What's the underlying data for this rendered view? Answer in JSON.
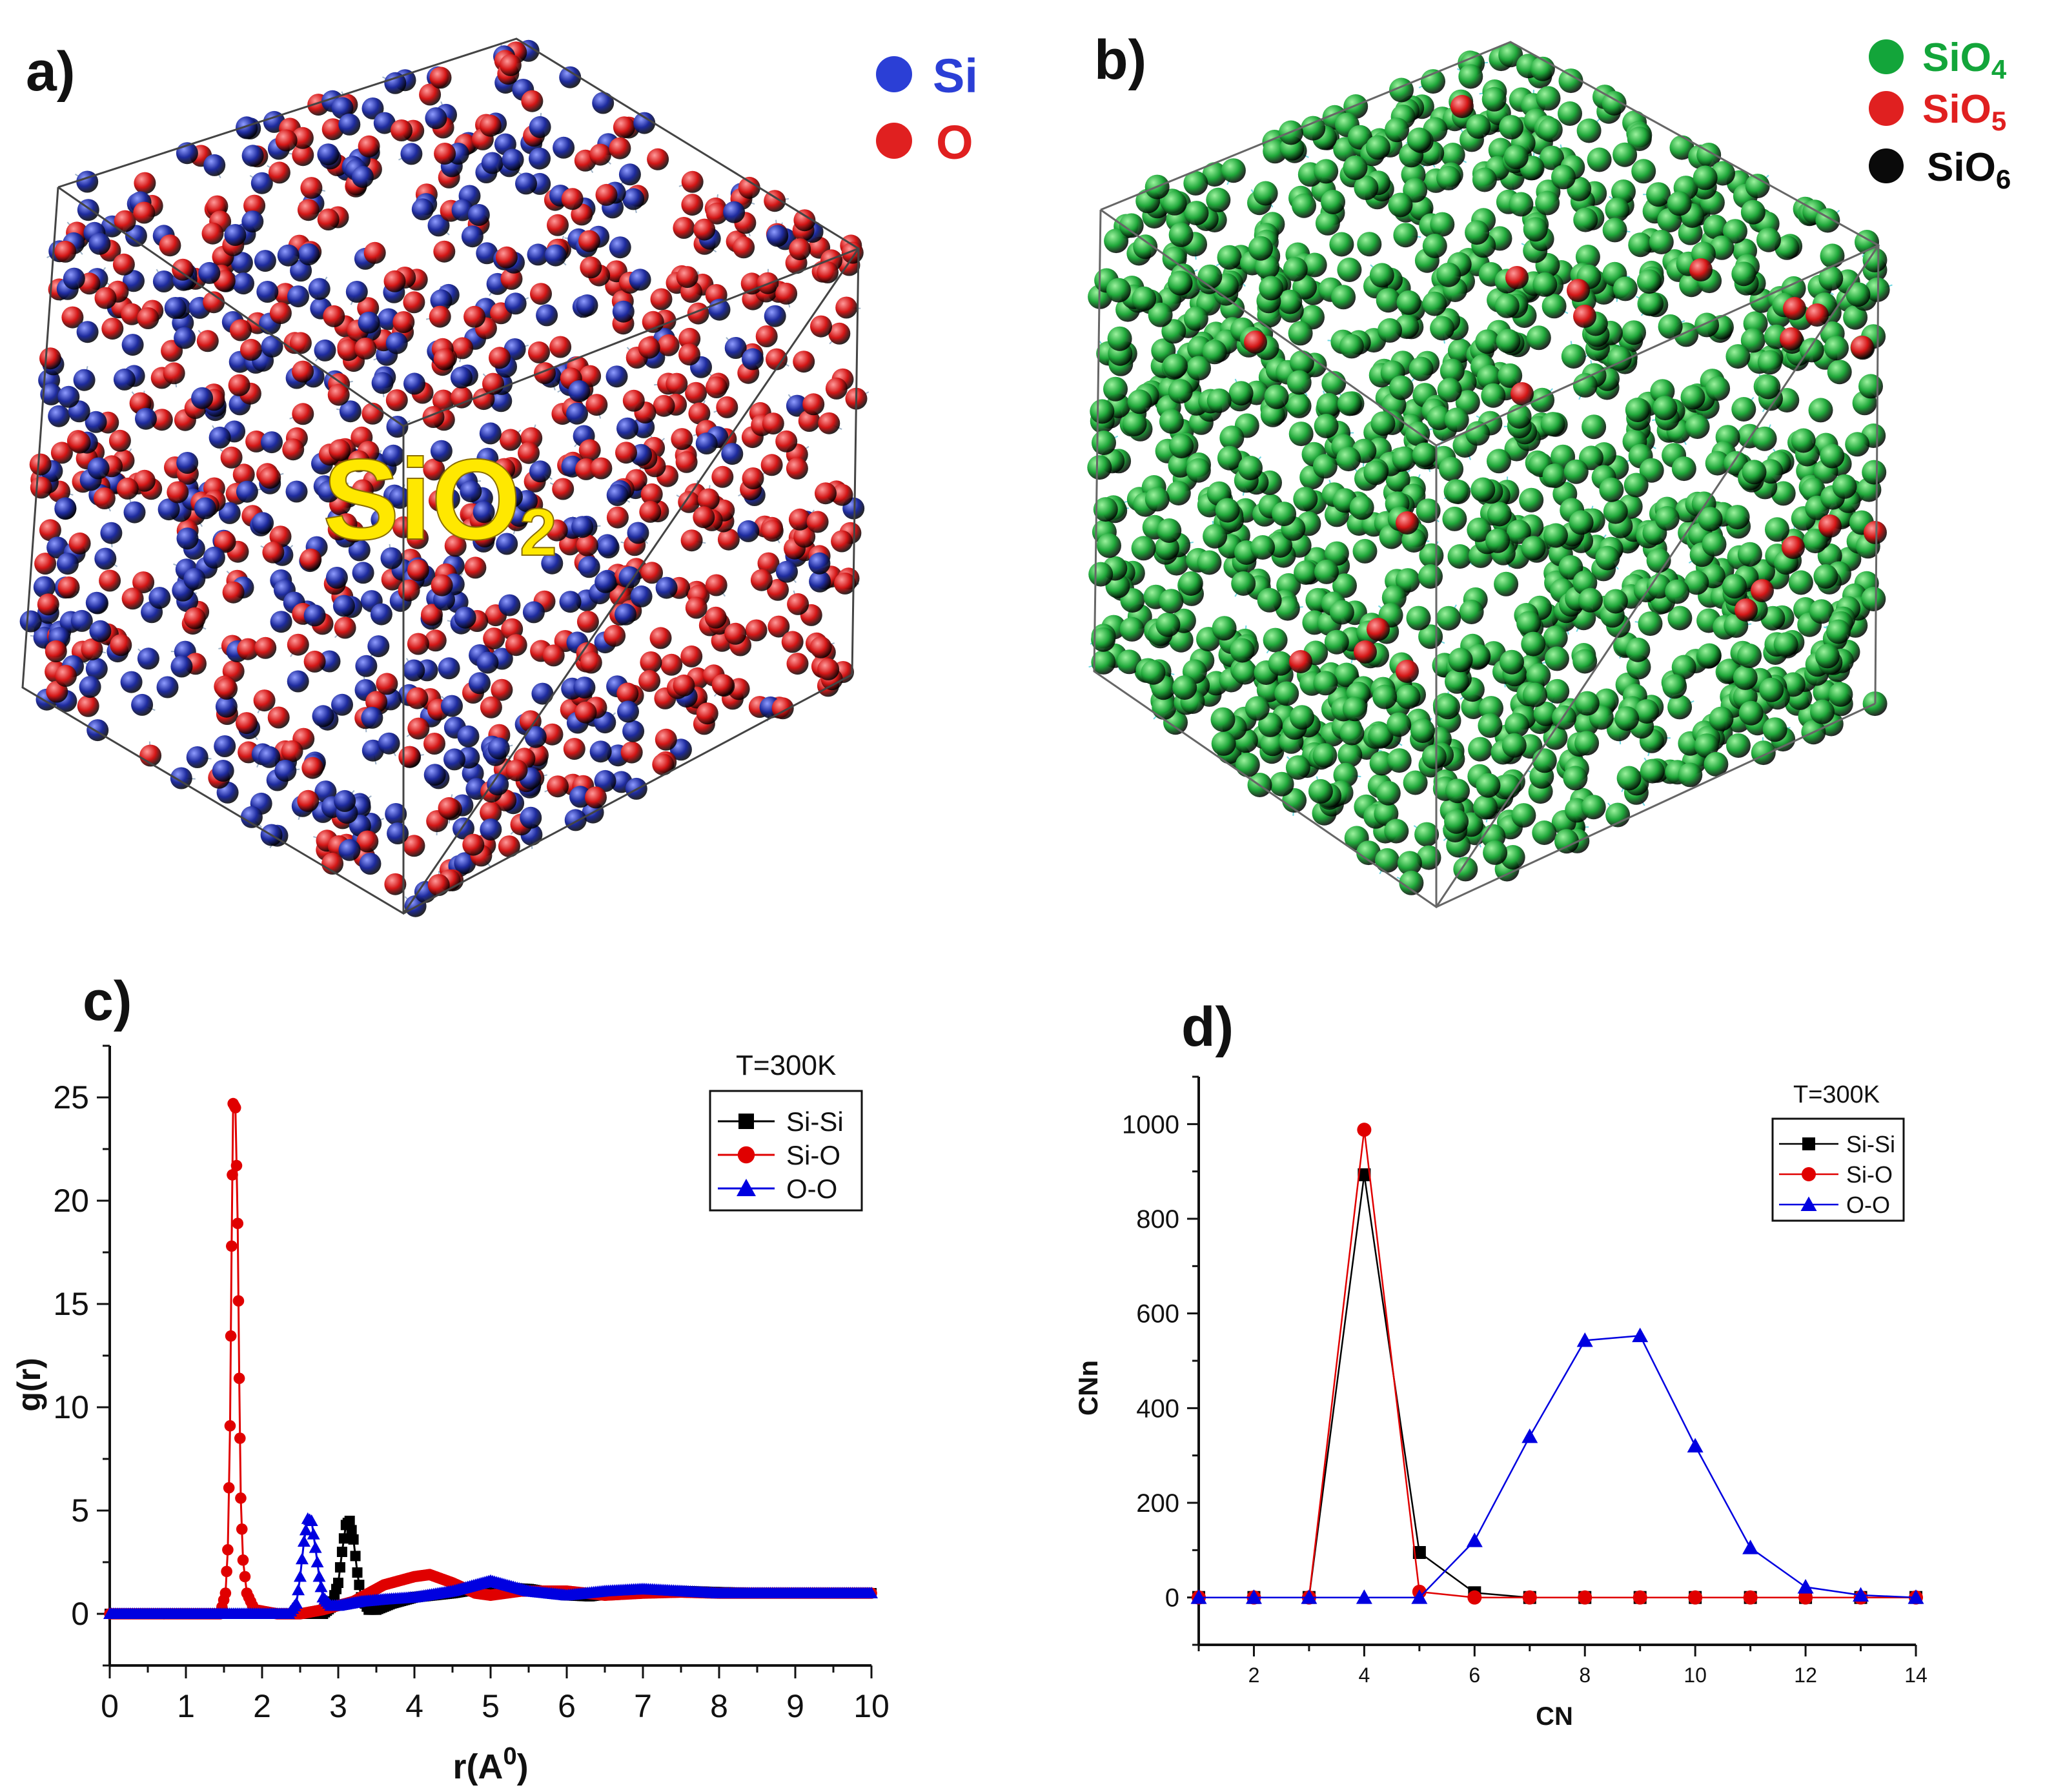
{
  "panels": {
    "a": {
      "label": "a)",
      "legend": [
        {
          "text": "Si",
          "color": "#2b3fd6"
        },
        {
          "text": "O",
          "color": "#e02020"
        }
      ],
      "overlay_text": "SiO",
      "overlay_subscript": "2",
      "atom_colors": {
        "si": "#1e2b9e",
        "o": "#d41616"
      }
    },
    "b": {
      "label": "b)",
      "legend": [
        {
          "text": "SiO",
          "sub": "4",
          "color": "#13a53a"
        },
        {
          "text": "SiO",
          "sub": "5",
          "color": "#e02020"
        },
        {
          "text": "SiO",
          "sub": "6",
          "color": "#0a0a0a"
        }
      ],
      "atom_colors": {
        "sio4": "#1fa83a",
        "sio5": "#d41616"
      }
    },
    "c": {
      "label": "c)"
    },
    "d": {
      "label": "d)"
    }
  },
  "chart_data": [
    {
      "id": "c",
      "type": "line",
      "title": "",
      "annotation": "T=300K",
      "xlabel": "r(A",
      "xlabel_sup": "0",
      "xlabel_end": ")",
      "ylabel": "g(r)",
      "xlim": [
        0,
        10
      ],
      "ylim": [
        -2.5,
        27.5
      ],
      "xticks": [
        0,
        1,
        2,
        3,
        4,
        5,
        6,
        7,
        8,
        9,
        10
      ],
      "yticks": [
        0,
        5,
        10,
        15,
        20,
        25
      ],
      "series": [
        {
          "name": "Si-Si",
          "color": "#000000",
          "marker": "square",
          "x": [
            0,
            2.8,
            2.9,
            3.0,
            3.05,
            3.1,
            3.15,
            3.2,
            3.25,
            3.3,
            3.4,
            3.5,
            3.7,
            4.0,
            4.5,
            5.0,
            5.5,
            6.0,
            6.3,
            6.6,
            7.0,
            7.5,
            8.0,
            8.5,
            9.0,
            9.5,
            10.0
          ],
          "y": [
            0,
            0,
            0.3,
            1.5,
            3.0,
            4.3,
            4.5,
            3.6,
            2.0,
            0.8,
            0.2,
            0.2,
            0.5,
            0.8,
            1.0,
            1.3,
            1.2,
            0.9,
            0.85,
            1.0,
            1.1,
            1.1,
            1.05,
            1.0,
            1.0,
            1.0,
            1.0
          ]
        },
        {
          "name": "Si-O",
          "color": "#e00000",
          "marker": "circle",
          "x": [
            0,
            1.45,
            1.52,
            1.55,
            1.58,
            1.6,
            1.62,
            1.65,
            1.68,
            1.7,
            1.72,
            1.75,
            1.8,
            1.9,
            2.2,
            2.5,
            2.8,
            3.2,
            3.6,
            4.0,
            4.2,
            4.5,
            4.8,
            5.0,
            5.4,
            6.0,
            6.5,
            7.0,
            7.5,
            8.0,
            9.0,
            10.0
          ],
          "y": [
            0,
            0,
            1.0,
            3.1,
            9.1,
            17.8,
            24.7,
            24.5,
            18.9,
            11.4,
            5.6,
            2.6,
            1.0,
            0.2,
            0,
            0,
            0.2,
            0.6,
            1.4,
            1.8,
            1.9,
            1.5,
            1.0,
            0.9,
            1.1,
            1.1,
            0.9,
            1.0,
            1.05,
            1.0,
            1.0,
            1.0
          ]
        },
        {
          "name": "O-O",
          "color": "#0000e0",
          "marker": "triangle",
          "x": [
            0,
            2.35,
            2.45,
            2.5,
            2.55,
            2.6,
            2.65,
            2.7,
            2.75,
            2.8,
            2.9,
            3.0,
            3.3,
            3.6,
            4.0,
            4.5,
            4.8,
            5.0,
            5.2,
            5.5,
            6.0,
            6.5,
            7.0,
            7.5,
            8.0,
            9.0,
            10.0
          ],
          "y": [
            0,
            0,
            0.5,
            1.8,
            3.5,
            4.6,
            4.5,
            3.2,
            1.8,
            0.8,
            0.4,
            0.4,
            0.6,
            0.7,
            0.8,
            1.1,
            1.4,
            1.6,
            1.4,
            1.1,
            0.9,
            1.1,
            1.2,
            1.1,
            1.0,
            1.0,
            1.0
          ]
        }
      ]
    },
    {
      "id": "d",
      "type": "line",
      "title": "",
      "annotation": "T=300K",
      "xlabel": "CN",
      "ylabel": "CNn",
      "xlim": [
        1,
        14
      ],
      "ylim": [
        -100,
        1100
      ],
      "xticks": [
        2,
        4,
        6,
        8,
        10,
        12,
        14
      ],
      "yticks": [
        0,
        200,
        400,
        600,
        800,
        1000
      ],
      "series": [
        {
          "name": "Si-Si",
          "color": "#000000",
          "marker": "square",
          "x": [
            1,
            2,
            3,
            4,
            5,
            6,
            7,
            8,
            9,
            10,
            11,
            12,
            13,
            14
          ],
          "y": [
            0,
            0,
            0,
            893,
            95,
            10,
            0,
            0,
            0,
            0,
            0,
            0,
            0,
            0
          ]
        },
        {
          "name": "Si-O",
          "color": "#e00000",
          "marker": "circle",
          "x": [
            1,
            2,
            3,
            4,
            5,
            6,
            7,
            8,
            9,
            10,
            11,
            12,
            13,
            14
          ],
          "y": [
            0,
            0,
            0,
            988,
            12,
            0,
            0,
            0,
            0,
            0,
            0,
            0,
            0,
            0
          ]
        },
        {
          "name": "O-O",
          "color": "#0000e0",
          "marker": "triangle",
          "x": [
            1,
            2,
            3,
            4,
            5,
            6,
            7,
            8,
            9,
            10,
            11,
            12,
            13,
            14
          ],
          "y": [
            0,
            0,
            0,
            0,
            0,
            120,
            340,
            543,
            553,
            320,
            105,
            22,
            5,
            0
          ]
        }
      ]
    }
  ]
}
